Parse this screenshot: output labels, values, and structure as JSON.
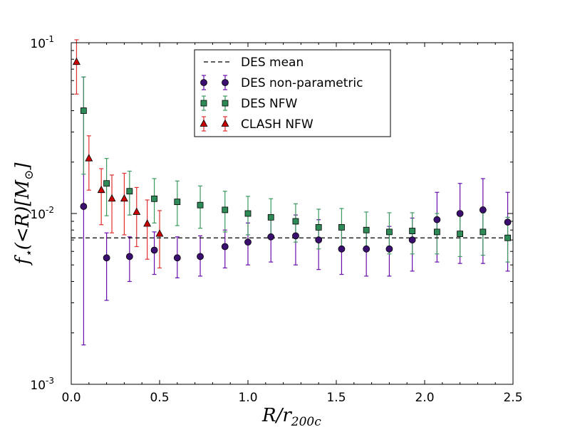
{
  "chart_data": {
    "type": "scatter",
    "title": "",
    "xlabel": "R/r200c",
    "ylabel": "f⋆(<R)[M⊙]",
    "x_scale": "linear",
    "y_scale": "log",
    "xlim": [
      0.0,
      2.5
    ],
    "ylim": [
      0.001,
      0.1
    ],
    "x_ticks": [
      0.0,
      0.5,
      1.0,
      1.5,
      2.0,
      2.5
    ],
    "x_tick_labels": [
      "0.0",
      "0.5",
      "1.0",
      "1.5",
      "2.0",
      "2.5"
    ],
    "y_ticks": [
      {
        "value": 0.001,
        "base": "10",
        "exp": "-3"
      },
      {
        "value": 0.01,
        "base": "10",
        "exp": "-2"
      },
      {
        "value": 0.1,
        "base": "10",
        "exp": "-1"
      }
    ],
    "grid": false,
    "legend": {
      "position": "top-center",
      "entries": [
        "DES mean",
        "DES non-parametric",
        "DES NFW",
        "CLASH NFW"
      ]
    },
    "mean_line": {
      "name": "DES mean",
      "value": 0.0072,
      "color": "#000000",
      "style": "dashed"
    },
    "series": [
      {
        "name": "DES non-parametric",
        "marker": "circle",
        "color": "#3b0f70",
        "errcolor": "#6a0dad",
        "x": [
          0.07,
          0.2,
          0.33,
          0.47,
          0.6,
          0.73,
          0.87,
          1.0,
          1.13,
          1.27,
          1.4,
          1.53,
          1.67,
          1.8,
          1.93,
          2.07,
          2.2,
          2.33,
          2.47
        ],
        "y": [
          0.011,
          0.0055,
          0.0056,
          0.0061,
          0.0055,
          0.0056,
          0.0064,
          0.0068,
          0.0073,
          0.0074,
          0.007,
          0.0062,
          0.0062,
          0.0062,
          0.007,
          0.0092,
          0.01,
          0.0105,
          0.0089
        ],
        "ylow": [
          0.0017,
          0.0031,
          0.004,
          0.0044,
          0.0042,
          0.0043,
          0.0048,
          0.005,
          0.0052,
          0.005,
          0.0047,
          0.0044,
          0.0043,
          0.0043,
          0.0046,
          0.0052,
          0.0051,
          0.0051,
          0.0046
        ],
        "yhigh": [
          0.063,
          0.0077,
          0.0073,
          0.0078,
          0.0073,
          0.0074,
          0.008,
          0.0088,
          0.0093,
          0.0098,
          0.0092,
          0.0084,
          0.0082,
          0.0084,
          0.0094,
          0.0133,
          0.015,
          0.016,
          0.0133
        ]
      },
      {
        "name": "DES NFW",
        "marker": "square",
        "color": "#2e8b57",
        "errcolor": "#3c9a5f",
        "x": [
          0.07,
          0.2,
          0.33,
          0.47,
          0.6,
          0.73,
          0.87,
          1.0,
          1.13,
          1.27,
          1.4,
          1.53,
          1.67,
          1.8,
          1.93,
          2.07,
          2.2,
          2.33,
          2.47
        ],
        "y": [
          0.04,
          0.015,
          0.0135,
          0.0122,
          0.0117,
          0.0112,
          0.0105,
          0.01,
          0.0095,
          0.009,
          0.0083,
          0.0083,
          0.008,
          0.0078,
          0.0079,
          0.0078,
          0.0076,
          0.0078,
          0.0072
        ],
        "ylow": [
          0.017,
          0.0097,
          0.0098,
          0.0088,
          0.0085,
          0.0082,
          0.0078,
          0.0075,
          0.0072,
          0.0068,
          0.0062,
          0.0062,
          0.006,
          0.0058,
          0.0058,
          0.0058,
          0.0056,
          0.0057,
          0.0052
        ],
        "yhigh": [
          0.063,
          0.021,
          0.0177,
          0.016,
          0.0155,
          0.0145,
          0.0135,
          0.0126,
          0.0122,
          0.0114,
          0.0106,
          0.0107,
          0.0102,
          0.0101,
          0.0101,
          0.01,
          0.0099,
          0.0101,
          0.0095
        ]
      },
      {
        "name": "CLASH NFW",
        "marker": "triangle",
        "color": "#cc0000",
        "errcolor": "#e03030",
        "x": [
          0.03,
          0.1,
          0.17,
          0.23,
          0.3,
          0.37,
          0.43,
          0.5
        ],
        "y": [
          0.077,
          0.021,
          0.0137,
          0.0122,
          0.0122,
          0.0102,
          0.0087,
          0.0076
        ],
        "ylow": [
          0.05,
          0.0137,
          0.0086,
          0.0077,
          0.0075,
          0.0064,
          0.0054,
          0.0048
        ],
        "yhigh": [
          0.104,
          0.0285,
          0.0183,
          0.0168,
          0.0172,
          0.0142,
          0.012,
          0.0104
        ]
      }
    ]
  }
}
